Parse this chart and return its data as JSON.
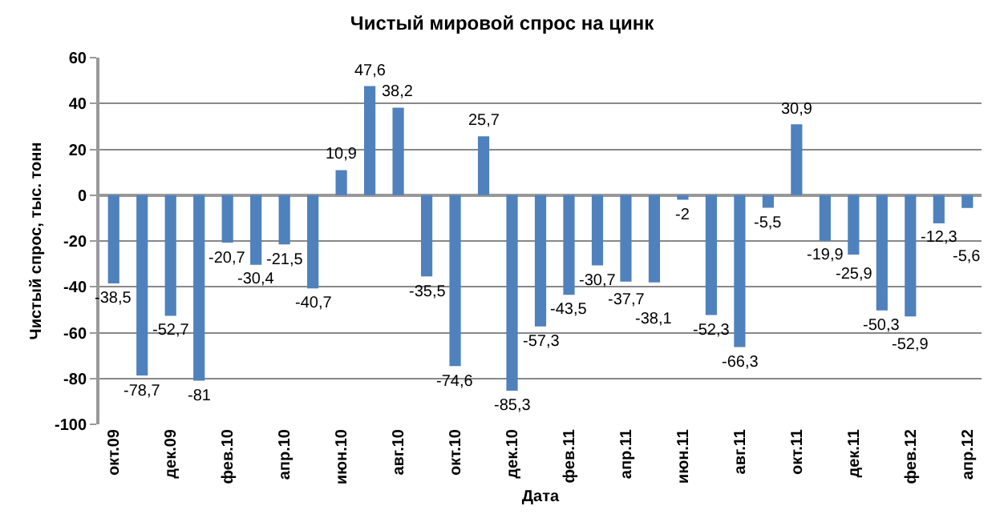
{
  "chart_data": {
    "type": "bar",
    "title": "Чистый мировой спрос на цинк",
    "xlabel": "Дата",
    "ylabel": "Чистый спрос, тыс. тонн",
    "categories": [
      "окт.09",
      null,
      "дек.09",
      null,
      "фев.10",
      null,
      "апр.10",
      null,
      "июн.10",
      null,
      "авг.10",
      null,
      "окт.10",
      null,
      "дек.10",
      null,
      "фев.11",
      null,
      "апр.11",
      null,
      "июн.11",
      null,
      "авг.11",
      null,
      "окт.11",
      null,
      "дек.11",
      null,
      "фев.12",
      null,
      "апр.12"
    ],
    "values": [
      -38.5,
      -78.7,
      -52.7,
      -81,
      -20.7,
      -30.4,
      -21.5,
      -40.7,
      10.9,
      47.6,
      38.2,
      -35.5,
      -74.6,
      25.7,
      -85.3,
      -57.3,
      -43.5,
      -30.7,
      -37.7,
      -38.1,
      -2,
      -52.3,
      -66.3,
      -5.5,
      30.9,
      -19.9,
      -25.9,
      -50.3,
      -52.9,
      -12.3,
      -5.6
    ],
    "value_labels": [
      "-38,5",
      "-78,7",
      "-52,7",
      "-81",
      "-20,7",
      "-30,4",
      "-21,5",
      "-40,7",
      "10,9",
      "47,6",
      "38,2",
      "-35,5",
      "-74,6",
      "25,7",
      "-85,3",
      "-57,3",
      "-43,5",
      "-30,7",
      "-37,7",
      "-38,1",
      "-2",
      "-52,3",
      "-66,3",
      "-5,5",
      "30,9",
      "-19,9",
      "-25,9",
      "-50,3",
      "-52,9",
      "-12,3",
      "-5,6"
    ],
    "color": "#4f81bd",
    "ylim": [
      -100,
      60
    ],
    "yticks": [
      -100,
      -80,
      -60,
      -40,
      -20,
      0,
      20,
      40,
      60
    ],
    "grid": "y"
  }
}
